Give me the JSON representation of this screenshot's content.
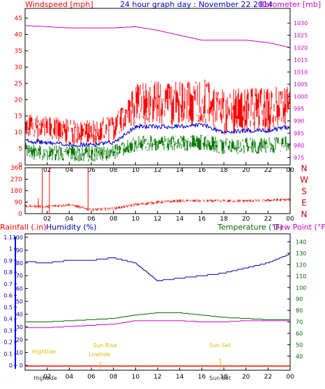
{
  "panel1": {
    "title": "24 hour graph day : November 22 2014",
    "left_label": "Windspeed [mph]",
    "right_label": "Barometer [mb]",
    "left_ticks": [
      "0",
      "5",
      "10",
      "15",
      "20",
      "25",
      "30",
      "35",
      "40",
      "45"
    ],
    "right_ticks": [
      "975",
      "980",
      "985",
      "990",
      "995",
      "1000",
      "1005",
      "1010",
      "1015",
      "1020",
      "1025",
      "1030"
    ],
    "x_ticks": [
      "02",
      "04",
      "06",
      "08",
      "10",
      "12",
      "14",
      "16",
      "18",
      "20",
      "22",
      "00"
    ]
  },
  "panel2": {
    "left_ticks": [
      "0",
      "90",
      "180",
      "270",
      "360"
    ],
    "right_labels": [
      "N",
      "W",
      "S",
      "E",
      "N"
    ],
    "x_ticks": [
      "02",
      "04",
      "06",
      "08",
      "10",
      "12",
      "14",
      "16",
      "18",
      "20",
      "22",
      "00"
    ]
  },
  "panel3": {
    "rainfall_label": "Rainfall (.in)",
    "humidity_label": "Humidity (%)",
    "temperature_label": "Temperature (°F)",
    "dewpoint_label": "Dew Point (°F)",
    "humidity_ticks": [
      "0",
      "10",
      "20",
      "30",
      "40",
      "50",
      "60",
      "70",
      "80",
      "90",
      "100"
    ],
    "rain_ticks": [
      "0",
      "0.1",
      "0.2",
      "0.3",
      "0.4",
      "0.5",
      "0.6",
      "0.7",
      "0.8",
      "0.9",
      "1",
      "1.1"
    ],
    "temp_ticks": [
      "40",
      "50",
      "60",
      "70",
      "80",
      "90",
      "100",
      "110",
      "120",
      "130",
      "140"
    ],
    "x_ticks": [
      "02",
      "04",
      "06",
      "08",
      "10",
      "12",
      "14",
      "16",
      "18",
      "20",
      "22",
      "00"
    ],
    "events": {
      "hightide_1": "Hightide",
      "sunrise": "Sun Rise",
      "lowtide": "Lowtide",
      "sunset": "Sun Set",
      "hightide_bottom": "Hightide",
      "sunset_bottom": "Sun Set"
    }
  },
  "colors": {
    "windspeed": "#ff0000",
    "windavg": "#0000cc",
    "gust": "#007700",
    "barometer": "#cc00cc",
    "direction": "#ee1100",
    "humidity": "#0000aa",
    "temperature": "#006600",
    "dewpoint": "#cc00cc",
    "rain": "#ff0000",
    "events": "#ddbb00"
  },
  "chart_data": [
    {
      "type": "line",
      "title": "24 hour graph day : November 22 2014",
      "xlabel": "",
      "ylabel": "Windspeed [mph]",
      "y2label": "Barometer [mb]",
      "x": [
        0,
        2,
        4,
        6,
        8,
        10,
        12,
        14,
        16,
        18,
        20,
        22,
        24
      ],
      "ylim": [
        0,
        48
      ],
      "y2lim": [
        972,
        1036
      ],
      "series": [
        {
          "name": "Windspeed [mph]",
          "values": [
            12,
            11,
            10,
            10,
            11,
            19,
            19,
            19,
            20,
            16,
            17,
            17,
            19
          ]
        },
        {
          "name": "Barometer [mb]",
          "axis": "right",
          "values": [
            1029,
            1028.5,
            1028,
            1028,
            1028,
            1028.5,
            1027,
            1025,
            1023,
            1023,
            1023,
            1022,
            1020
          ]
        }
      ]
    },
    {
      "type": "line",
      "x": [
        0,
        2,
        4,
        6,
        8,
        10,
        12,
        14,
        16,
        18,
        20,
        22,
        24
      ],
      "ylim": [
        0,
        360
      ],
      "series": [
        {
          "name": "direction",
          "values": [
            60,
            55,
            70,
            30,
            40,
            70,
            90,
            100,
            100,
            100,
            100,
            105,
            110
          ]
        }
      ]
    },
    {
      "type": "line",
      "x": [
        0,
        2,
        4,
        6,
        8,
        10,
        12,
        14,
        16,
        18,
        20,
        22,
        24
      ],
      "ylim": [
        0,
        100
      ],
      "y2lim": [
        32,
        144
      ],
      "series": [
        {
          "name": "Humidity (%)",
          "values": [
            81,
            80,
            82,
            82,
            84,
            80,
            66,
            68,
            70,
            72,
            76,
            80,
            87
          ]
        },
        {
          "name": "Temperature (°F)",
          "axis": "right",
          "values": [
            70,
            70,
            71,
            72,
            73,
            76,
            78,
            78,
            76,
            74,
            73,
            72,
            72
          ]
        },
        {
          "name": "Dew Point (°F)",
          "axis": "right",
          "values": [
            65,
            65,
            66,
            67,
            68,
            71,
            71,
            71,
            70,
            70,
            71,
            71,
            71
          ]
        },
        {
          "name": "Rainfall (.in)",
          "values": [
            0,
            0,
            0,
            0,
            0,
            0,
            0,
            0,
            0,
            0,
            0,
            0,
            0
          ]
        }
      ]
    }
  ]
}
